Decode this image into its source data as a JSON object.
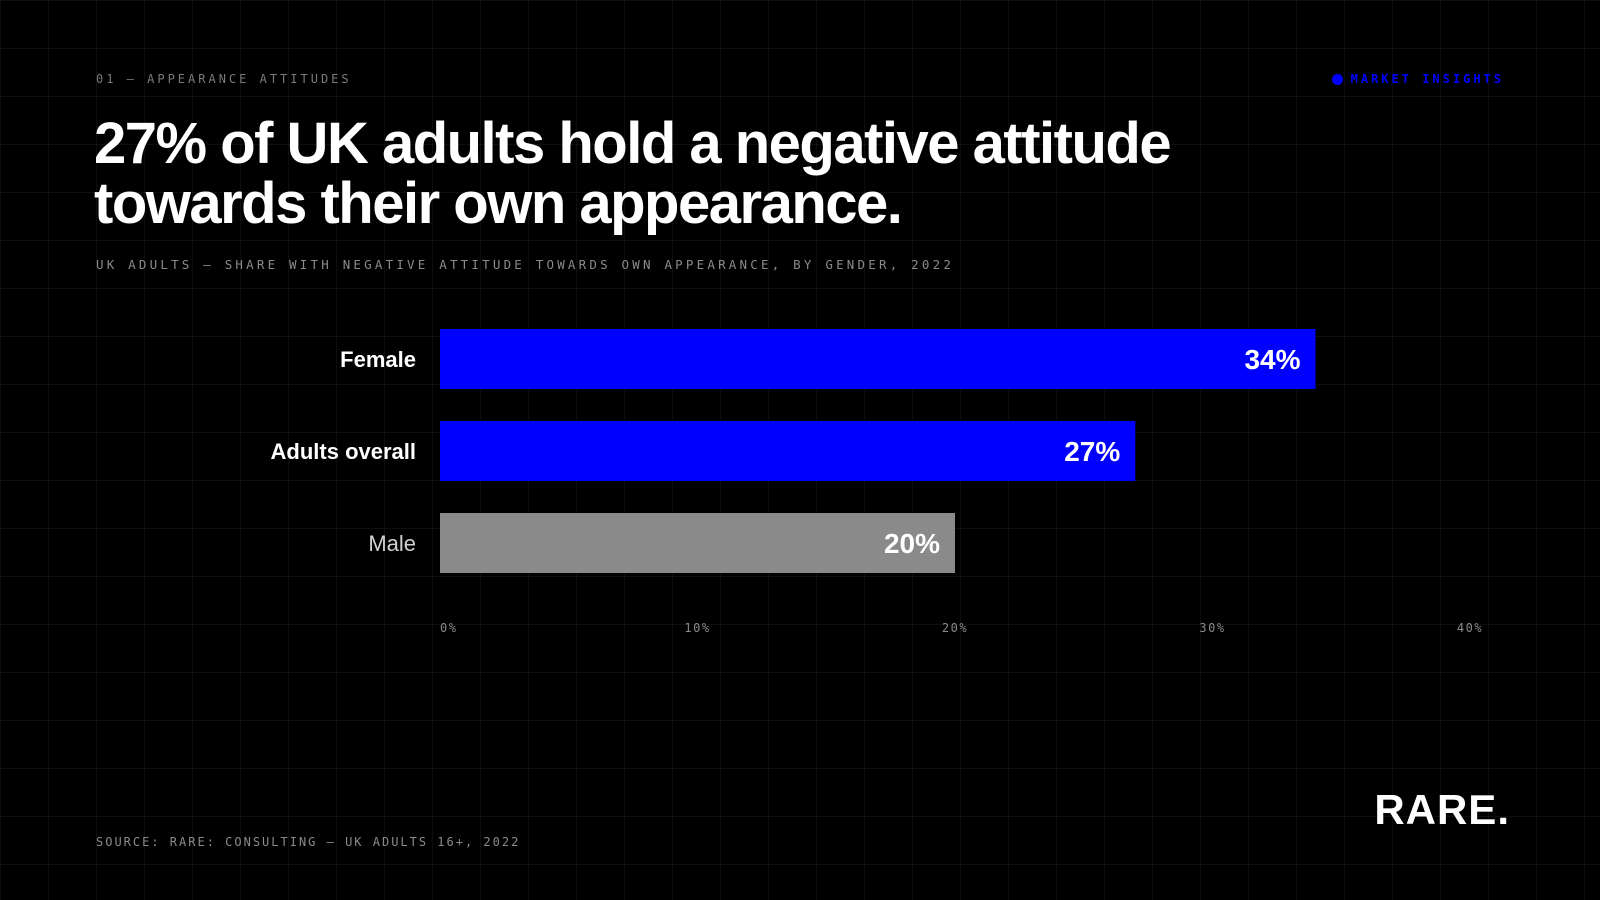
{
  "header": {
    "kicker": "01 — APPEARANCE ATTITUDES",
    "tag": "MARKET INSIGHTS",
    "headline": "27% of UK adults hold a negative attitude towards their own appearance.",
    "subtitle": "UK ADULTS — SHARE WITH NEGATIVE ATTITUDE TOWARDS OWN APPEARANCE, BY GENDER, 2022"
  },
  "footer": {
    "source": "SOURCE: RARE: CONSULTING — UK ADULTS 16+, 2022",
    "logo": "RARE."
  },
  "colors": {
    "accent": "#0000ff",
    "muted_bar": "#8a8a8a",
    "background": "#000000",
    "text": "#ffffff",
    "tick": "#8a8a8a"
  },
  "chart_data": {
    "type": "bar",
    "orientation": "horizontal",
    "categories": [
      "Female",
      "Adults overall",
      "Male"
    ],
    "values": [
      34,
      27,
      20
    ],
    "data_labels": [
      "34%",
      "27%",
      "20%"
    ],
    "bar_colors": [
      "#0000ff",
      "#0000ff",
      "#8a8a8a"
    ],
    "label_emphasis": [
      "bold",
      "bold",
      "normal"
    ],
    "xlim": [
      0,
      40
    ],
    "xticks": [
      0,
      10,
      20,
      30,
      40
    ],
    "xtick_labels": [
      "0%",
      "10%",
      "20%",
      "30%",
      "40%"
    ],
    "title": "",
    "xlabel": "",
    "ylabel": "",
    "grid": true,
    "legend": "none"
  }
}
